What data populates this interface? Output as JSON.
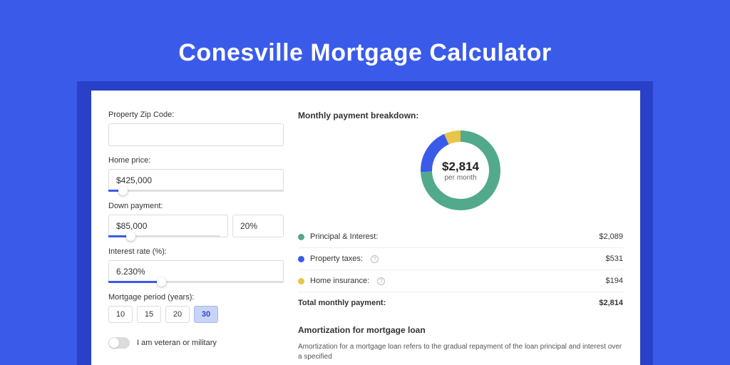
{
  "page": {
    "title": "Conesville Mortgage Calculator",
    "background_color": "#3a5bea",
    "panel_background": "#ffffff",
    "panel_shadow": "#2940c9"
  },
  "form": {
    "zip": {
      "label": "Property Zip Code:",
      "value": ""
    },
    "home_price": {
      "label": "Home price:",
      "value": "$425,000",
      "slider_pct": 8
    },
    "down_payment": {
      "label": "Down payment:",
      "amount": "$85,000",
      "percent": "20%",
      "slider_pct": 20
    },
    "interest_rate": {
      "label": "Interest rate (%):",
      "value": "6.230%",
      "slider_pct": 30
    },
    "mortgage_period": {
      "label": "Mortgage period (years):",
      "options": [
        "10",
        "15",
        "20",
        "30"
      ],
      "active_index": 3
    },
    "veteran": {
      "label": "I am veteran or military",
      "checked": false
    }
  },
  "breakdown": {
    "heading": "Monthly payment breakdown:",
    "donut": {
      "center_value": "$2,814",
      "center_sub": "per month",
      "stroke_width": 16,
      "segments": [
        {
          "name": "principal_interest",
          "color": "#52a98c",
          "value": 2089
        },
        {
          "name": "property_taxes",
          "color": "#3a5bea",
          "value": 531
        },
        {
          "name": "home_insurance",
          "color": "#e9c547",
          "value": 194
        }
      ]
    },
    "rows": [
      {
        "swatch": "#52a98c",
        "label": "Principal & Interest:",
        "value": "$2,089",
        "has_info": false
      },
      {
        "swatch": "#3a5bea",
        "label": "Property taxes:",
        "value": "$531",
        "has_info": true
      },
      {
        "swatch": "#e9c547",
        "label": "Home insurance:",
        "value": "$194",
        "has_info": true
      }
    ],
    "total": {
      "label": "Total monthly payment:",
      "value": "$2,814"
    }
  },
  "amortization": {
    "heading": "Amortization for mortgage loan",
    "body": "Amortization for a mortgage loan refers to the gradual repayment of the loan principal and interest over a specified"
  }
}
